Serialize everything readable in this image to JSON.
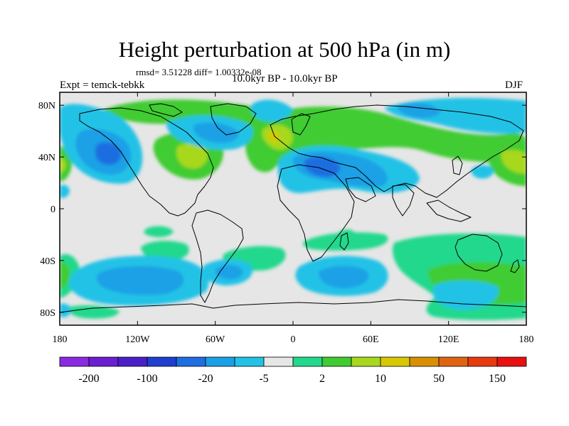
{
  "title": "Height perturbation at 500 hPa (in m)",
  "stats": "rmsd= 3.51228 diff= 1.00332e-08",
  "period": "10.0kyr BP - 10.0kyr BP",
  "experiment": "Expt = temck-tebkk",
  "season": "DJF",
  "map": {
    "projection": "cylindrical equidistant",
    "lon_range": [
      -180,
      180
    ],
    "lat_range": [
      -90,
      90
    ],
    "background_color": "#e6e6e6",
    "x_ticks": [
      {
        "value": -180,
        "label": "180"
      },
      {
        "value": -120,
        "label": "120W"
      },
      {
        "value": -60,
        "label": "60W"
      },
      {
        "value": 0,
        "label": "0"
      },
      {
        "value": 60,
        "label": "60E"
      },
      {
        "value": 120,
        "label": "120E"
      },
      {
        "value": 180,
        "label": "180"
      }
    ],
    "y_ticks": [
      {
        "value": 80,
        "label": "80N"
      },
      {
        "value": 40,
        "label": "40N"
      },
      {
        "value": 0,
        "label": "0"
      },
      {
        "value": -40,
        "label": "40S"
      },
      {
        "value": -80,
        "label": "80S"
      }
    ]
  },
  "colorbar": {
    "colors": [
      "#8a2be2",
      "#6a1fd0",
      "#4a20c8",
      "#1f3fd0",
      "#1e6ee0",
      "#1aa0e6",
      "#22c2e6",
      "#e6e6e6",
      "#22d88c",
      "#40cc30",
      "#a8d81e",
      "#d8c800",
      "#d89000",
      "#e06410",
      "#e83a10",
      "#e81010"
    ],
    "labels": [
      {
        "boundary": 1,
        "text": "-200"
      },
      {
        "boundary": 3,
        "text": "-100"
      },
      {
        "boundary": 5,
        "text": "-20"
      },
      {
        "boundary": 7,
        "text": "-5"
      },
      {
        "boundary": 9,
        "text": "2"
      },
      {
        "boundary": 11,
        "text": "10"
      },
      {
        "boundary": 13,
        "text": "50"
      },
      {
        "boundary": 15,
        "text": "150"
      }
    ]
  }
}
